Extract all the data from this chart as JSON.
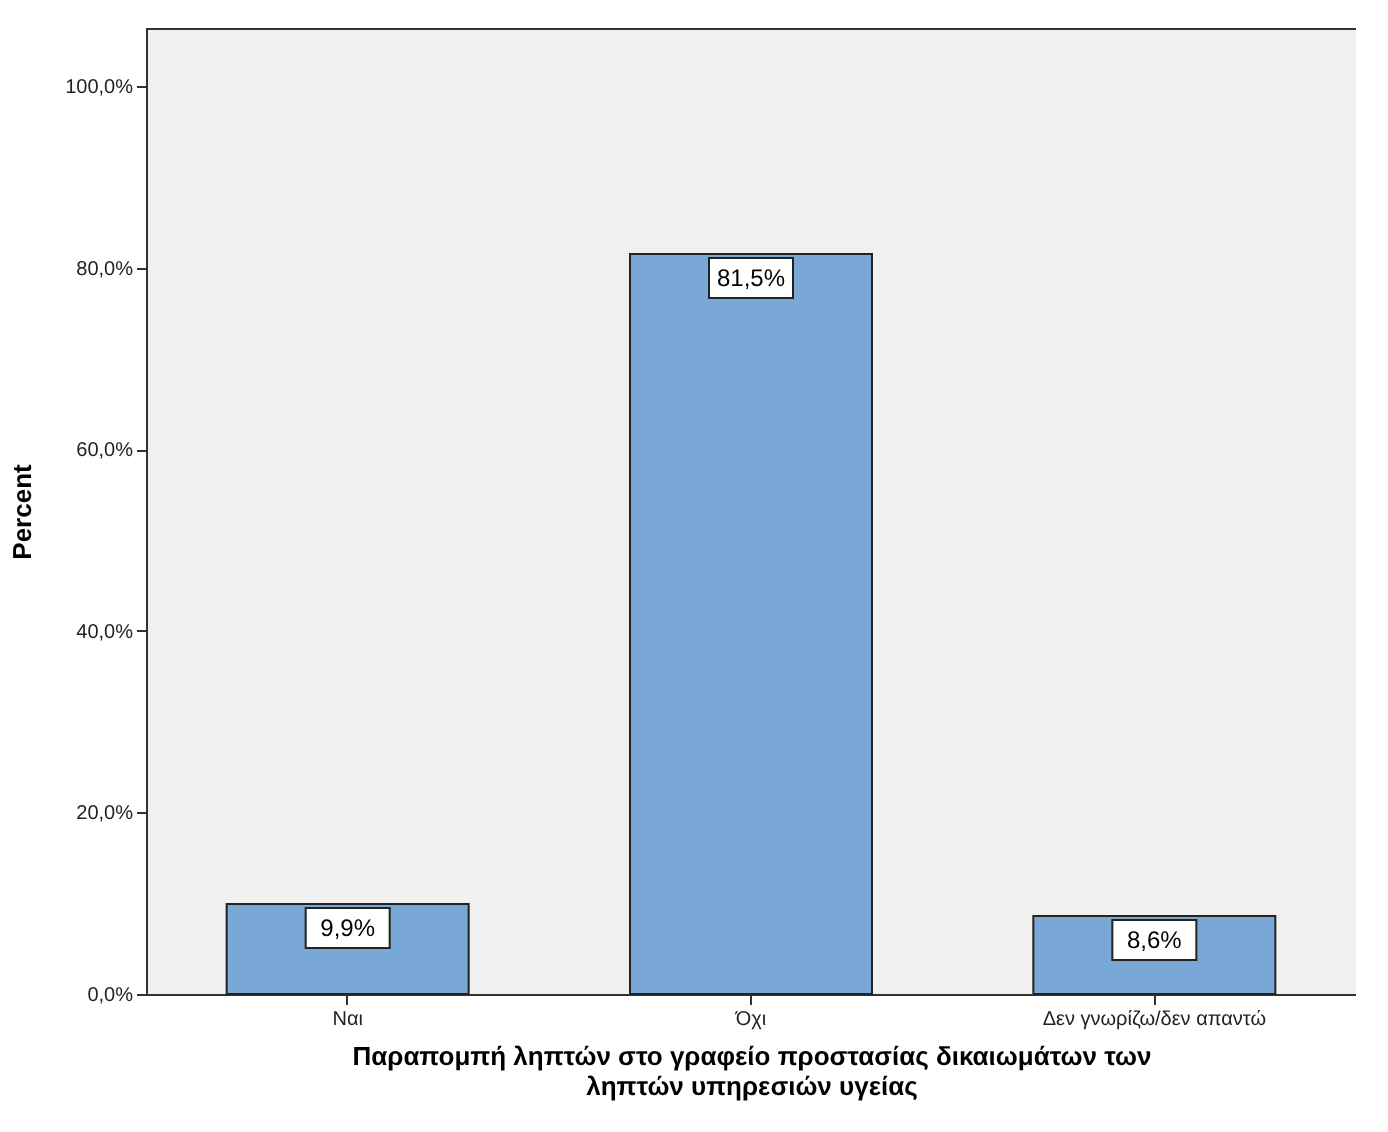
{
  "chart_data": {
    "type": "bar",
    "xlabel": "Παραπομπή ληπτών στο γραφείο προστασίας δικαιωμάτων των ληπτών υπηρεσιών υγείας",
    "ylabel": "Percent",
    "categories": [
      "Ναι",
      "Όχι",
      "Δεν γνωρίζω/δεν απαντώ"
    ],
    "values": [
      9.9,
      81.5,
      8.6
    ],
    "value_labels": [
      "9,9%",
      "81,5%",
      "8,6%"
    ],
    "color": "#79a7d6",
    "ylim": [
      0,
      106.4
    ],
    "yticks": [
      {
        "value": 0,
        "label": "0,0%"
      },
      {
        "value": 20,
        "label": "20,0%"
      },
      {
        "value": 40,
        "label": "40,0%"
      },
      {
        "value": 60,
        "label": "60,0%"
      },
      {
        "value": 80,
        "label": "80,0%"
      },
      {
        "value": 100,
        "label": "100,0%"
      }
    ],
    "grid": false
  }
}
